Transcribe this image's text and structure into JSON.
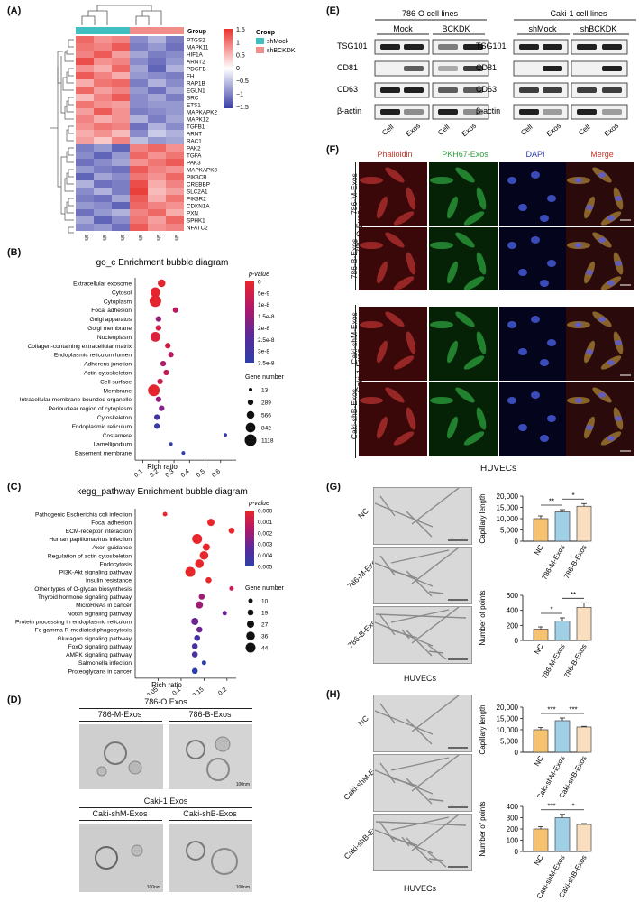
{
  "panels": {
    "A": "(A)",
    "B": "(B)",
    "C": "(C)",
    "D": "(D)",
    "E": "(E)",
    "F": "(F)",
    "G": "(G)",
    "H": "(H)"
  },
  "heatmap": {
    "group_title": "Group",
    "legend_title": "Group",
    "legend_items": [
      {
        "label": "shMock",
        "color": "#40bfc1"
      },
      {
        "label": "shBCKDK",
        "color": "#f28e8a"
      }
    ],
    "scale_ticks": [
      "1.5",
      "1",
      "0.5",
      "0",
      "−0.5",
      "−1",
      "−1.5"
    ],
    "genes": [
      "PTGS2",
      "MAPK11",
      "HIF1A",
      "ARNT2",
      "PDGFB",
      "FH",
      "RAP1B",
      "EGLN1",
      "SRC",
      "ETS1",
      "MAPKAPK2",
      "MAPK12",
      "TGFB1",
      "ARNT",
      "RAC1",
      "PAK2",
      "TGFA",
      "PAK3",
      "MAPKAPK3",
      "PIK3CB",
      "CREBBP",
      "SLC2A1",
      "PIK3R2",
      "CDKN1A",
      "PXN",
      "SPHK1",
      "NFATC2"
    ],
    "samples": [
      "shMock-3",
      "shMock-2",
      "shMock-1",
      "shBCKDK-3",
      "shBCKDK-2",
      "shBCKDK-1"
    ]
  },
  "chart_data": [
    {
      "type": "heatmap",
      "rows": [
        "PTGS2",
        "MAPK11",
        "HIF1A",
        "ARNT2",
        "PDGFB",
        "FH",
        "RAP1B",
        "EGLN1",
        "SRC",
        "ETS1",
        "MAPKAPK2",
        "MAPK12",
        "TGFB1",
        "ARNT",
        "RAC1",
        "PAK2",
        "TGFA",
        "PAK3",
        "MAPKAPK3",
        "PIK3CB",
        "CREBBP",
        "SLC2A1",
        "PIK3R2",
        "CDKN1A",
        "PXN",
        "SPHK1",
        "NFATC2"
      ],
      "columns": [
        "shMock-3",
        "shMock-2",
        "shMock-1",
        "shBCKDK-3",
        "shBCKDK-2",
        "shBCKDK-1"
      ],
      "zlim": [
        -1.5,
        1.5
      ],
      "values": [
        [
          1.1,
          0.8,
          0.9,
          -0.9,
          -0.6,
          -1.0
        ],
        [
          1.0,
          0.9,
          1.2,
          -1.0,
          -0.8,
          -1.1
        ],
        [
          0.9,
          1.2,
          0.7,
          -0.7,
          -1.0,
          -0.9
        ],
        [
          1.3,
          0.8,
          0.9,
          -0.9,
          -1.1,
          -0.8
        ],
        [
          0.8,
          0.6,
          1.1,
          -0.7,
          -1.2,
          -0.6
        ],
        [
          1.2,
          0.9,
          0.6,
          -0.8,
          -0.9,
          -1.0
        ],
        [
          0.6,
          1.0,
          1.1,
          -1.0,
          -0.6,
          -0.9
        ],
        [
          1.1,
          0.7,
          0.9,
          -0.8,
          -1.1,
          -0.7
        ],
        [
          0.5,
          0.9,
          1.2,
          -0.9,
          -0.7,
          -1.0
        ],
        [
          1.0,
          0.8,
          0.7,
          -0.9,
          -0.8,
          -0.8
        ],
        [
          0.7,
          1.2,
          0.8,
          -1.0,
          -0.9,
          -0.8
        ],
        [
          0.9,
          0.6,
          0.8,
          -0.6,
          -1.0,
          -0.7
        ],
        [
          0.8,
          1.0,
          0.9,
          -1.1,
          -0.6,
          -0.9
        ],
        [
          0.6,
          0.8,
          0.5,
          -0.9,
          -0.4,
          -0.6
        ],
        [
          0.7,
          0.4,
          0.9,
          -0.5,
          -0.8,
          -0.7
        ],
        [
          -1.0,
          -0.8,
          -1.2,
          0.9,
          1.1,
          0.8
        ],
        [
          -0.9,
          -1.2,
          -0.8,
          1.1,
          0.8,
          1.0
        ],
        [
          -1.1,
          -0.9,
          -0.7,
          0.8,
          1.0,
          1.2
        ],
        [
          -0.8,
          -1.0,
          -1.1,
          1.2,
          0.9,
          0.8
        ],
        [
          -1.2,
          -0.7,
          -0.9,
          1.0,
          0.8,
          1.1
        ],
        [
          -0.6,
          -1.1,
          -1.0,
          1.3,
          0.6,
          0.9
        ],
        [
          -0.9,
          -0.6,
          -1.0,
          1.4,
          0.5,
          0.7
        ],
        [
          -1.0,
          -1.1,
          -0.7,
          1.2,
          0.6,
          1.0
        ],
        [
          -0.8,
          -0.9,
          -1.2,
          1.1,
          0.9,
          0.8
        ],
        [
          -1.1,
          -0.8,
          -0.6,
          0.9,
          1.1,
          0.6
        ],
        [
          -0.7,
          -1.2,
          -0.9,
          1.0,
          0.7,
          1.1
        ],
        [
          -0.9,
          -0.8,
          -1.1,
          1.2,
          0.8,
          0.9
        ]
      ]
    },
    {
      "type": "scatter",
      "title": "go_c Enrichment bubble diagram",
      "xlabel": "Rich ratio",
      "xlim": [
        0.05,
        0.7
      ],
      "x_ticks": [
        "0.1",
        "0.2",
        "0.3",
        "0.4",
        "0.5",
        "0.6"
      ],
      "categories": [
        "Extracellular exosome",
        "Cytosol",
        "Cytoplasm",
        "Focal adhesion",
        "Golgi apparatus",
        "Golgi membrane",
        "Nucleoplasm",
        "Collagen-containing extracellular matrix",
        "Endoplasmic reticulum lumen",
        "Adherens junction",
        "Actin cytoskeleton",
        "Cell surface",
        "Membrane",
        "Intracellular membrane-bounded organelle",
        "Perinuclear region of cytoplasm",
        "Cytoskeleton",
        "Endoplasmic reticulum",
        "Costamere",
        "Lamellipodium",
        "Basement membrane"
      ],
      "rich_ratio": [
        0.22,
        0.18,
        0.18,
        0.31,
        0.2,
        0.2,
        0.18,
        0.26,
        0.28,
        0.23,
        0.25,
        0.21,
        0.17,
        0.2,
        0.22,
        0.19,
        0.19,
        0.63,
        0.28,
        0.36
      ],
      "p_value": [
        1e-09,
        1e-09,
        1e-09,
        1e-08,
        1.5e-08,
        5e-09,
        3e-09,
        5e-09,
        1e-08,
        1.2e-08,
        8e-09,
        6e-09,
        1e-09,
        1.5e-08,
        1.8e-08,
        3e-08,
        3.2e-08,
        3.3e-08,
        3.4e-08,
        3.5e-08
      ],
      "gene_number": [
        566,
        842,
        1118,
        289,
        289,
        289,
        842,
        289,
        289,
        289,
        289,
        289,
        1118,
        289,
        289,
        289,
        289,
        13,
        13,
        13
      ],
      "colorbar_title": "p-value",
      "colorbar_ticks": [
        "0",
        "5e-9",
        "1e-8",
        "1.5e-8",
        "2e-8",
        "2.5e-8",
        "3e-8",
        "3.5e-8"
      ],
      "size_title": "Gene number",
      "size_ticks": [
        "13",
        "289",
        "566",
        "842",
        "1118"
      ]
    },
    {
      "type": "scatter",
      "title": "kegg_pathway Enrichment bubble diagram",
      "xlabel": "Rich ratio",
      "xlim": [
        0.0,
        0.22
      ],
      "x_ticks": [
        "0.05",
        "0.1",
        "0.15",
        "0.2"
      ],
      "categories": [
        "Pathogenic Escherichia coli infection",
        "Focal adhesion",
        "ECM-receptor interaction",
        "Human papillomavirus infection",
        "Axon guidance",
        "Regulation of actin cytoskeleton",
        "Endocytosis",
        "PI3K-Akt signaling pathway",
        "Insulin resistance",
        "Other types of O-glycan biosynthesis",
        "Thyroid hormone signaling pathway",
        "MicroRNAs in cancer",
        "Notch signaling pathway",
        "Protein processing in endoplasmic reticulum",
        "Fc gamma R-mediated phagocytosis",
        "Glucagon signaling pathway",
        "FoxO signaling pathway",
        "AMPK signaling pathway",
        "Salmonella infection",
        "Proteoglycans in cancer"
      ],
      "rich_ratio": [
        0.065,
        0.165,
        0.21,
        0.135,
        0.155,
        0.15,
        0.14,
        0.12,
        0.16,
        0.21,
        0.145,
        0.14,
        0.195,
        0.13,
        0.14,
        0.135,
        0.13,
        0.13,
        0.15,
        0.13
      ],
      "p_value": [
        0.0,
        0.0,
        0.0,
        0.0,
        0.0,
        0.0,
        0.0,
        0.0,
        0.0,
        0.001,
        0.002,
        0.002,
        0.003,
        0.003,
        0.003,
        0.004,
        0.004,
        0.004,
        0.005,
        0.005
      ],
      "gene_number": [
        10,
        27,
        19,
        44,
        27,
        36,
        36,
        44,
        19,
        10,
        19,
        27,
        10,
        27,
        19,
        19,
        19,
        19,
        10,
        19
      ],
      "colorbar_title": "p-value",
      "colorbar_ticks": [
        "0.000",
        "0.001",
        "0.002",
        "0.003",
        "0.004",
        "0.005"
      ],
      "size_title": "Gene number",
      "size_ticks": [
        "10",
        "19",
        "27",
        "36",
        "44"
      ]
    },
    {
      "type": "bar",
      "panel": "G-top",
      "categories": [
        "NC",
        "786-M-Exos",
        "786-B-Exos"
      ],
      "values": [
        10000,
        13000,
        15500
      ],
      "errors": [
        1200,
        1000,
        1200
      ],
      "colors": [
        "#f6c270",
        "#9fd0e6",
        "#f9dfc0"
      ],
      "ylabel": "Capillary length",
      "ylim": [
        0,
        20000
      ],
      "y_ticks": [
        "0",
        "5,000",
        "10,000",
        "15,000",
        "20,000"
      ],
      "significance": [
        {
          "from": 0,
          "to": 1,
          "label": "**"
        },
        {
          "from": 1,
          "to": 2,
          "label": "*"
        }
      ]
    },
    {
      "type": "bar",
      "panel": "G-bottom",
      "categories": [
        "NC",
        "786-M-Exos",
        "786-B-Exos"
      ],
      "values": [
        150,
        260,
        440
      ],
      "errors": [
        30,
        40,
        60
      ],
      "colors": [
        "#f6c270",
        "#9fd0e6",
        "#f9dfc0"
      ],
      "ylabel": "Number of points",
      "ylim": [
        0,
        600
      ],
      "y_ticks": [
        "0",
        "200",
        "400",
        "600"
      ],
      "significance": [
        {
          "from": 0,
          "to": 1,
          "label": "*"
        },
        {
          "from": 1,
          "to": 2,
          "label": "**"
        }
      ]
    },
    {
      "type": "bar",
      "panel": "H-top",
      "categories": [
        "NC",
        "Caki-shM-Exos",
        "Caki-shB-Exos"
      ],
      "values": [
        10000,
        14000,
        11200
      ],
      "errors": [
        1000,
        1200,
        300
      ],
      "colors": [
        "#f6c270",
        "#9fd0e6",
        "#f9dfc0"
      ],
      "ylabel": "Capillary length",
      "ylim": [
        0,
        20000
      ],
      "y_ticks": [
        "0",
        "5,000",
        "10,000",
        "15,000",
        "20,000"
      ],
      "significance": [
        {
          "from": 0,
          "to": 1,
          "label": "***"
        },
        {
          "from": 1,
          "to": 2,
          "label": "***"
        }
      ]
    },
    {
      "type": "bar",
      "panel": "H-bottom",
      "categories": [
        "NC",
        "Caki-shM-Exos",
        "Caki-shB-Exos"
      ],
      "values": [
        200,
        300,
        240
      ],
      "errors": [
        20,
        30,
        8
      ],
      "colors": [
        "#f6c270",
        "#9fd0e6",
        "#f9dfc0"
      ],
      "ylabel": "Number of points",
      "ylim": [
        0,
        400
      ],
      "y_ticks": [
        "0",
        "100",
        "200",
        "300",
        "400"
      ],
      "significance": [
        {
          "from": 0,
          "to": 1,
          "label": "***"
        },
        {
          "from": 1,
          "to": 2,
          "label": "*"
        }
      ]
    }
  ],
  "tem": {
    "group1_title": "786-O Exos",
    "group1_labels": [
      "786-M-Exos",
      "786-B-Exos"
    ],
    "group2_title": "Caki-1 Exos",
    "group2_labels": [
      "Caki-shM-Exos",
      "Caki-shB-Exos"
    ],
    "scale": "100nm"
  },
  "western": {
    "left_title": "786-O cell lines",
    "left_groups": [
      "Mock",
      "BCKDK"
    ],
    "right_title": "Caki-1 cell lines",
    "right_groups": [
      "shMock",
      "shBCKDK"
    ],
    "proteins": [
      "TSG101",
      "CD81",
      "CD63",
      "β-actin"
    ],
    "lanes": [
      "Cell",
      "Exos",
      "Cell",
      "Exos"
    ]
  },
  "fluorescence": {
    "columns": [
      "Phalloidin",
      "PKH67-Exos",
      "DAPI",
      "Merge"
    ],
    "column_colors": [
      "#c0392b",
      "#2e9e3a",
      "#2b3aa8",
      "#c0392b"
    ],
    "group1": "786-O Exos",
    "group2": "Caki-1 Exos",
    "rows": [
      "786-M-Exos",
      "786-B-Exos",
      "Caki-shM-Exos",
      "Caki-shB-Exos"
    ],
    "footer": "HUVECs"
  },
  "tube": {
    "g_rows": [
      "NC",
      "786-M-Exos",
      "786-B-Exos"
    ],
    "h_rows": [
      "NC",
      "Caki-shM-Exos",
      "Caki-shB-Exos"
    ],
    "footer": "HUVECs"
  }
}
